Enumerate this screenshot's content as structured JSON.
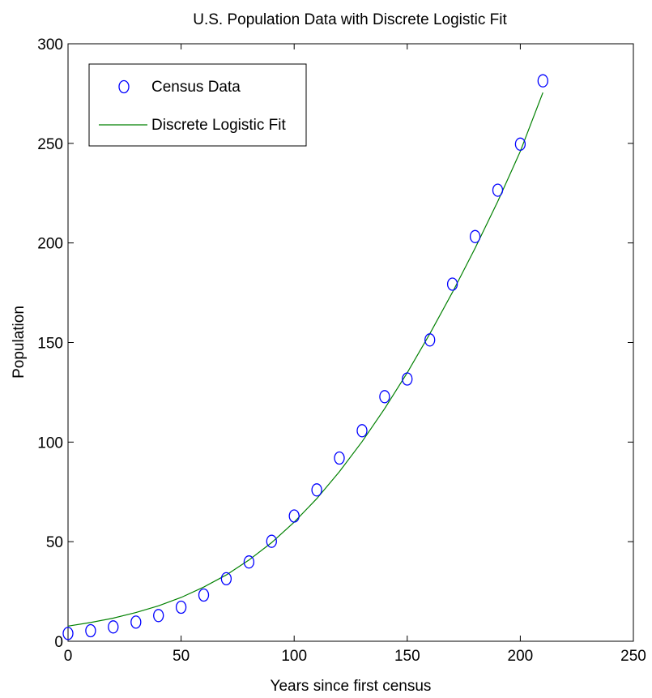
{
  "chart_data": {
    "type": "scatter",
    "title": "U.S. Population Data with Discrete Logistic Fit",
    "xlabel": "Years since first census",
    "ylabel": "Population",
    "xlim": [
      0,
      250
    ],
    "ylim": [
      0,
      300
    ],
    "xticks": [
      0,
      50,
      100,
      150,
      200,
      250
    ],
    "yticks": [
      0,
      50,
      100,
      150,
      200,
      250,
      300
    ],
    "grid": false,
    "legend_position": "top-left",
    "series": [
      {
        "name": "Census Data",
        "style": "markers",
        "marker": "open-circle",
        "color": "#0000ff",
        "x": [
          0,
          10,
          20,
          30,
          40,
          50,
          60,
          70,
          80,
          90,
          100,
          110,
          120,
          130,
          140,
          150,
          160,
          170,
          180,
          190,
          200,
          210
        ],
        "y": [
          3.9,
          5.3,
          7.2,
          9.6,
          12.9,
          17.1,
          23.2,
          31.4,
          39.8,
          50.2,
          62.9,
          76.0,
          92.0,
          105.7,
          122.8,
          131.7,
          151.3,
          179.3,
          203.2,
          226.5,
          249.6,
          281.4
        ]
      },
      {
        "name": "Discrete Logistic Fit",
        "style": "line",
        "color": "#008000",
        "x": [
          0,
          10,
          20,
          30,
          40,
          50,
          60,
          70,
          80,
          90,
          100,
          110,
          120,
          130,
          140,
          150,
          160,
          170,
          180,
          190,
          200,
          210
        ],
        "y": [
          7.6,
          9.4,
          11.6,
          14.4,
          17.8,
          22.0,
          27.2,
          33.3,
          40.8,
          49.5,
          59.8,
          71.6,
          85.1,
          100.2,
          116.8,
          134.8,
          154.4,
          175.2,
          197.4,
          220.8,
          246.0,
          275.5
        ]
      }
    ]
  }
}
